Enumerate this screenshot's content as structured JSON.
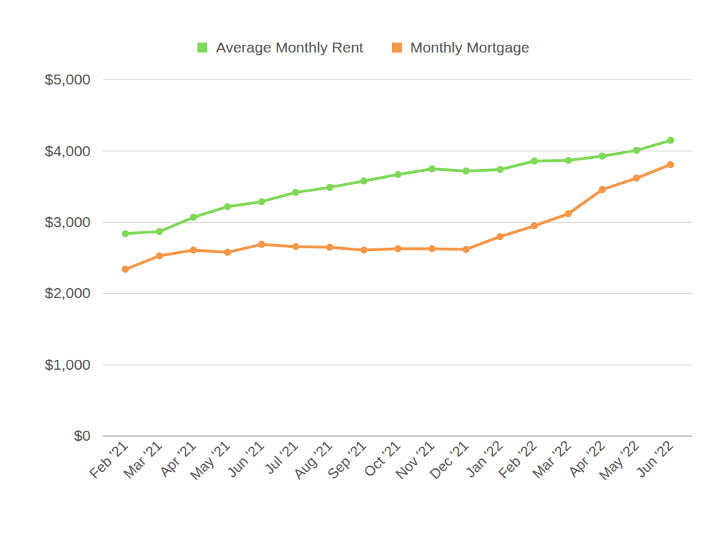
{
  "chart_data": {
    "type": "line",
    "categories": [
      "Feb '21",
      "Mar '21",
      "Apr '21",
      "May '21",
      "Jun '21",
      "Jul '21",
      "Aug '21",
      "Sep '21",
      "Oct '21",
      "Nov '21",
      "Dec '21",
      "Jan '22",
      "Feb '22",
      "Mar '22",
      "Apr '22",
      "May '22",
      "Jun '22"
    ],
    "series": [
      {
        "name": "Average Monthly Rent",
        "color": "#7ed957",
        "values": [
          2840,
          2870,
          3070,
          3220,
          3290,
          3420,
          3490,
          3580,
          3670,
          3750,
          3720,
          3740,
          3860,
          3870,
          3930,
          4010,
          4150
        ]
      },
      {
        "name": "Monthly Mortgage",
        "color": "#f79646",
        "values": [
          2340,
          2530,
          2610,
          2580,
          2690,
          2660,
          2650,
          2610,
          2630,
          2630,
          2620,
          2800,
          2950,
          3120,
          3460,
          3620,
          3810
        ]
      }
    ],
    "ylim": [
      0,
      5000
    ],
    "yticks": [
      {
        "value": 0,
        "label": "$0"
      },
      {
        "value": 1000,
        "label": "$1,000"
      },
      {
        "value": 2000,
        "label": "$2,000"
      },
      {
        "value": 3000,
        "label": "$3,000"
      },
      {
        "value": 4000,
        "label": "$4,000"
      },
      {
        "value": 5000,
        "label": "$5,000"
      }
    ],
    "grid": true,
    "legend": "top",
    "marker": "circle"
  }
}
